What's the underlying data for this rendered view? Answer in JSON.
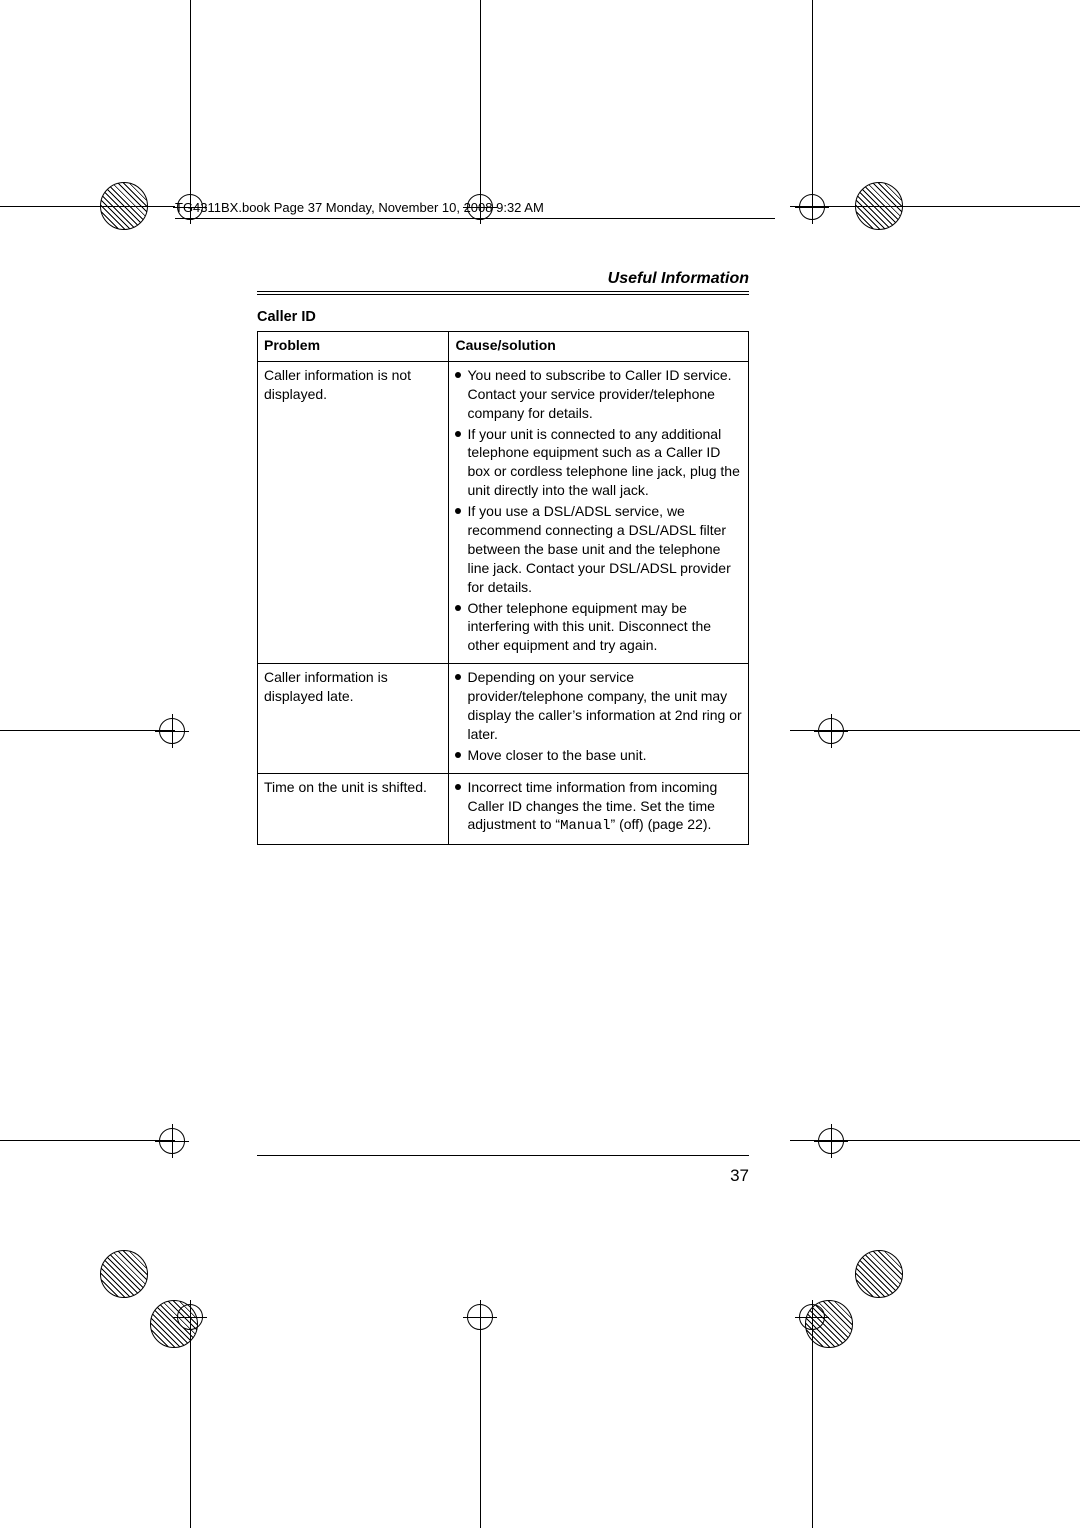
{
  "running_head": "Useful Information",
  "section_title": "Caller ID",
  "headers": {
    "problem": "Problem",
    "solution": "Cause/solution"
  },
  "rows": [
    {
      "problem": "Caller information is not displayed.",
      "solutions": [
        "You need to subscribe to Caller ID service. Contact your service provider/telephone company for details.",
        "If your unit is connected to any additional telephone equipment such as a Caller ID box or cordless telephone line jack, plug the unit directly into the wall jack.",
        "If you use a DSL/ADSL service, we recommend connecting a DSL/ADSL filter between the base unit and the telephone line jack. Contact your DSL/ADSL provider for details.",
        "Other telephone equipment may be interfering with this unit. Disconnect the other equipment and try again."
      ]
    },
    {
      "problem": "Caller information is displayed late.",
      "solutions": [
        "Depending on your service provider/telephone company, the unit may display the caller’s information at 2nd ring or later.",
        "Move closer to the base unit."
      ]
    },
    {
      "problem": "Time on the unit is shifted.",
      "solutions_html": [
        {
          "pre": "Incorrect time information from incoming Caller ID changes the time. Set the time adjustment to “",
          "mono": "Manual",
          "post": "” (off) (page 22)."
        }
      ]
    }
  ],
  "page_number": "37",
  "book_line": "TG4311BX.book  Page 37  Monday, November 10, 2008  9:32 AM",
  "colors": {
    "text": "#000000",
    "background": "#ffffff"
  }
}
